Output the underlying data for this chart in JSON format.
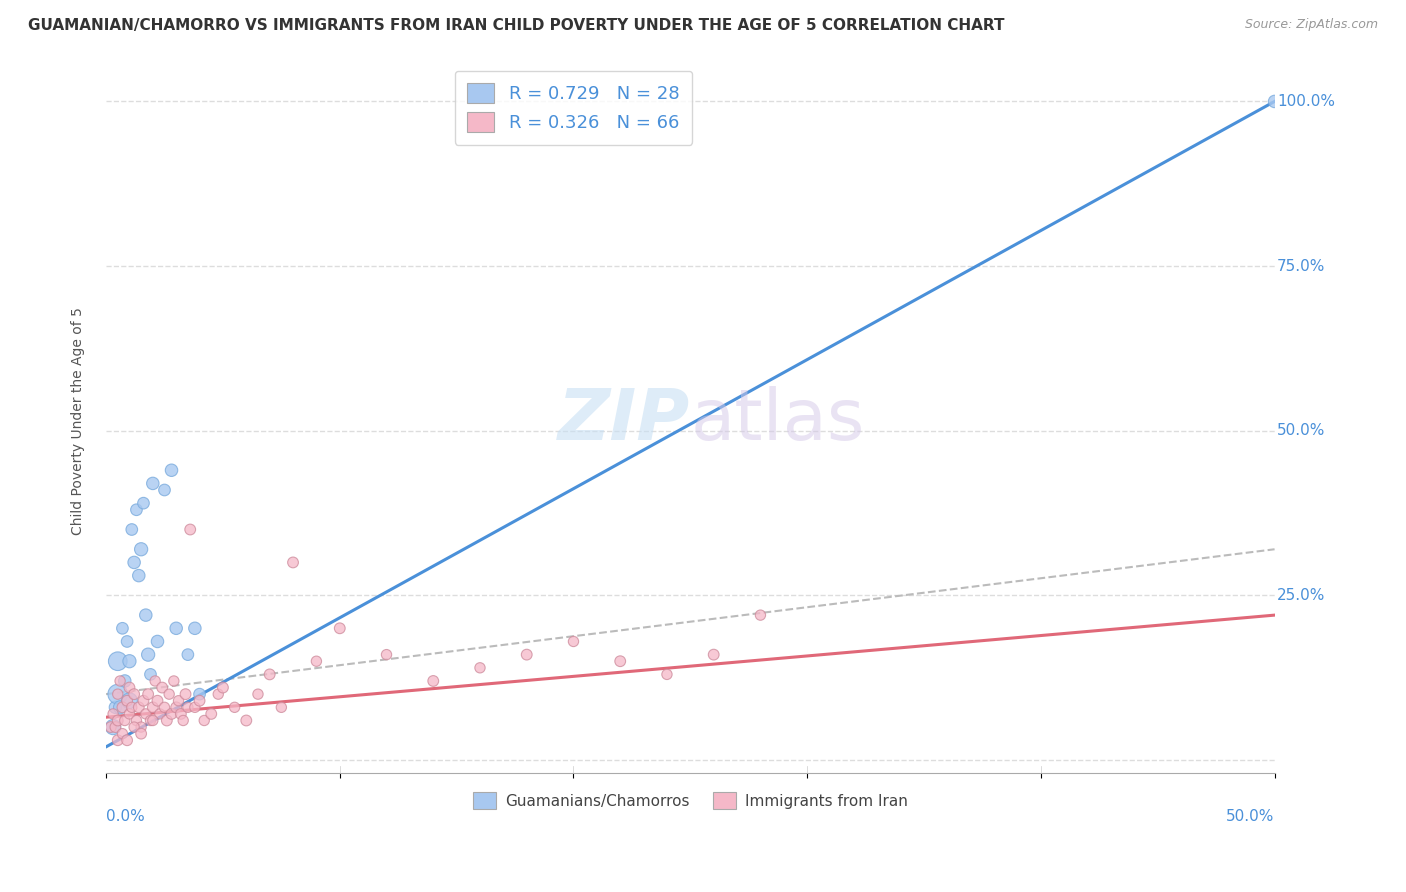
{
  "title": "GUAMANIAN/CHAMORRO VS IMMIGRANTS FROM IRAN CHILD POVERTY UNDER THE AGE OF 5 CORRELATION CHART",
  "source": "Source: ZipAtlas.com",
  "ylabel": "Child Poverty Under the Age of 5",
  "yticks": [
    0.0,
    0.25,
    0.5,
    0.75,
    1.0
  ],
  "xlim": [
    0.0,
    0.5
  ],
  "ylim": [
    -0.02,
    1.05
  ],
  "legend_r1": "R = 0.729",
  "legend_n1": "N = 28",
  "legend_r2": "R = 0.326",
  "legend_n2": "N = 66",
  "legend_label1": "Guamanians/Chamorros",
  "legend_label2": "Immigrants from Iran",
  "blue_color": "#a8c8f0",
  "pink_color": "#f5b8c8",
  "blue_line_color": "#4a90d9",
  "pink_line_color": "#e06878",
  "gray_dashed_color": "#bbbbbb",
  "blue_scatter": {
    "x": [
      0.003,
      0.004,
      0.005,
      0.005,
      0.006,
      0.007,
      0.008,
      0.009,
      0.01,
      0.01,
      0.011,
      0.012,
      0.013,
      0.014,
      0.015,
      0.016,
      0.017,
      0.018,
      0.019,
      0.02,
      0.022,
      0.025,
      0.028,
      0.03,
      0.035,
      0.038,
      0.04,
      0.5
    ],
    "y": [
      0.05,
      0.08,
      0.1,
      0.15,
      0.08,
      0.2,
      0.12,
      0.18,
      0.15,
      0.09,
      0.35,
      0.3,
      0.38,
      0.28,
      0.32,
      0.39,
      0.22,
      0.16,
      0.13,
      0.42,
      0.18,
      0.41,
      0.44,
      0.2,
      0.16,
      0.2,
      0.1,
      1.0
    ],
    "sizes": [
      120,
      80,
      200,
      180,
      90,
      70,
      80,
      70,
      90,
      130,
      70,
      80,
      70,
      80,
      90,
      70,
      80,
      90,
      70,
      80,
      80,
      70,
      80,
      80,
      70,
      80,
      70,
      80
    ]
  },
  "pink_scatter": {
    "x": [
      0.002,
      0.003,
      0.004,
      0.005,
      0.005,
      0.006,
      0.007,
      0.008,
      0.009,
      0.01,
      0.01,
      0.011,
      0.012,
      0.013,
      0.014,
      0.015,
      0.016,
      0.017,
      0.018,
      0.019,
      0.02,
      0.021,
      0.022,
      0.023,
      0.024,
      0.025,
      0.026,
      0.027,
      0.028,
      0.029,
      0.03,
      0.031,
      0.032,
      0.033,
      0.034,
      0.035,
      0.036,
      0.038,
      0.04,
      0.042,
      0.045,
      0.048,
      0.05,
      0.055,
      0.06,
      0.065,
      0.07,
      0.075,
      0.08,
      0.09,
      0.1,
      0.12,
      0.14,
      0.16,
      0.18,
      0.2,
      0.22,
      0.24,
      0.26,
      0.28,
      0.005,
      0.007,
      0.009,
      0.012,
      0.015,
      0.02
    ],
    "y": [
      0.05,
      0.07,
      0.05,
      0.1,
      0.06,
      0.12,
      0.08,
      0.06,
      0.09,
      0.07,
      0.11,
      0.08,
      0.1,
      0.06,
      0.08,
      0.05,
      0.09,
      0.07,
      0.1,
      0.06,
      0.08,
      0.12,
      0.09,
      0.07,
      0.11,
      0.08,
      0.06,
      0.1,
      0.07,
      0.12,
      0.08,
      0.09,
      0.07,
      0.06,
      0.1,
      0.08,
      0.35,
      0.08,
      0.09,
      0.06,
      0.07,
      0.1,
      0.11,
      0.08,
      0.06,
      0.1,
      0.13,
      0.08,
      0.3,
      0.15,
      0.2,
      0.16,
      0.12,
      0.14,
      0.16,
      0.18,
      0.15,
      0.13,
      0.16,
      0.22,
      0.03,
      0.04,
      0.03,
      0.05,
      0.04,
      0.06
    ],
    "sizes": [
      60,
      55,
      60,
      55,
      60,
      55,
      60,
      55,
      60,
      55,
      60,
      55,
      60,
      55,
      60,
      55,
      60,
      55,
      60,
      55,
      60,
      55,
      60,
      55,
      60,
      55,
      60,
      55,
      60,
      55,
      60,
      55,
      60,
      55,
      60,
      55,
      60,
      55,
      60,
      55,
      60,
      55,
      60,
      55,
      60,
      55,
      60,
      55,
      60,
      55,
      60,
      55,
      60,
      55,
      60,
      55,
      60,
      55,
      60,
      55,
      60,
      55,
      60,
      55,
      60,
      55
    ]
  },
  "blue_line": {
    "x": [
      0.0,
      0.5
    ],
    "y": [
      0.02,
      1.0
    ]
  },
  "pink_line": {
    "x": [
      0.0,
      0.5
    ],
    "y": [
      0.065,
      0.22
    ]
  },
  "gray_dashed_line": {
    "x": [
      0.0,
      0.5
    ],
    "y": [
      0.1,
      0.32
    ]
  },
  "background_color": "#ffffff",
  "grid_color": "#dddddd",
  "title_fontsize": 11,
  "axis_label_fontsize": 10,
  "tick_fontsize": 11
}
